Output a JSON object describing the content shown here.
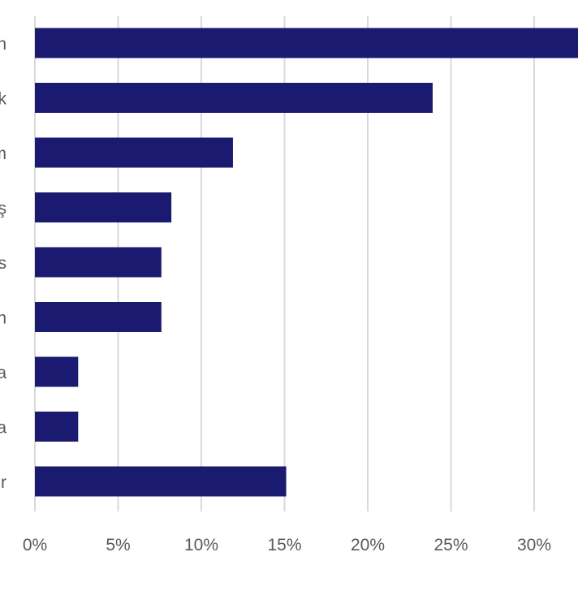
{
  "chart_data": {
    "type": "bar",
    "orientation": "horizontal",
    "categories": [
      "n",
      "k",
      "m",
      "ş",
      "s",
      "n",
      "a",
      "a",
      "r"
    ],
    "values": [
      33,
      23.9,
      11.9,
      8.2,
      7.6,
      7.6,
      2.6,
      2.6,
      15.1
    ],
    "xlim": [
      0,
      33
    ],
    "xticks": [
      "0%",
      "5%",
      "10%",
      "15%",
      "20%",
      "25%",
      "30%"
    ],
    "xtick_values": [
      0,
      5,
      10,
      15,
      20,
      25,
      30
    ],
    "grid": true,
    "bar_color": "#1a1a70",
    "grid_color": "#d9d9d9",
    "text_color": "#595959",
    "title": "",
    "xlabel": "",
    "ylabel": ""
  }
}
